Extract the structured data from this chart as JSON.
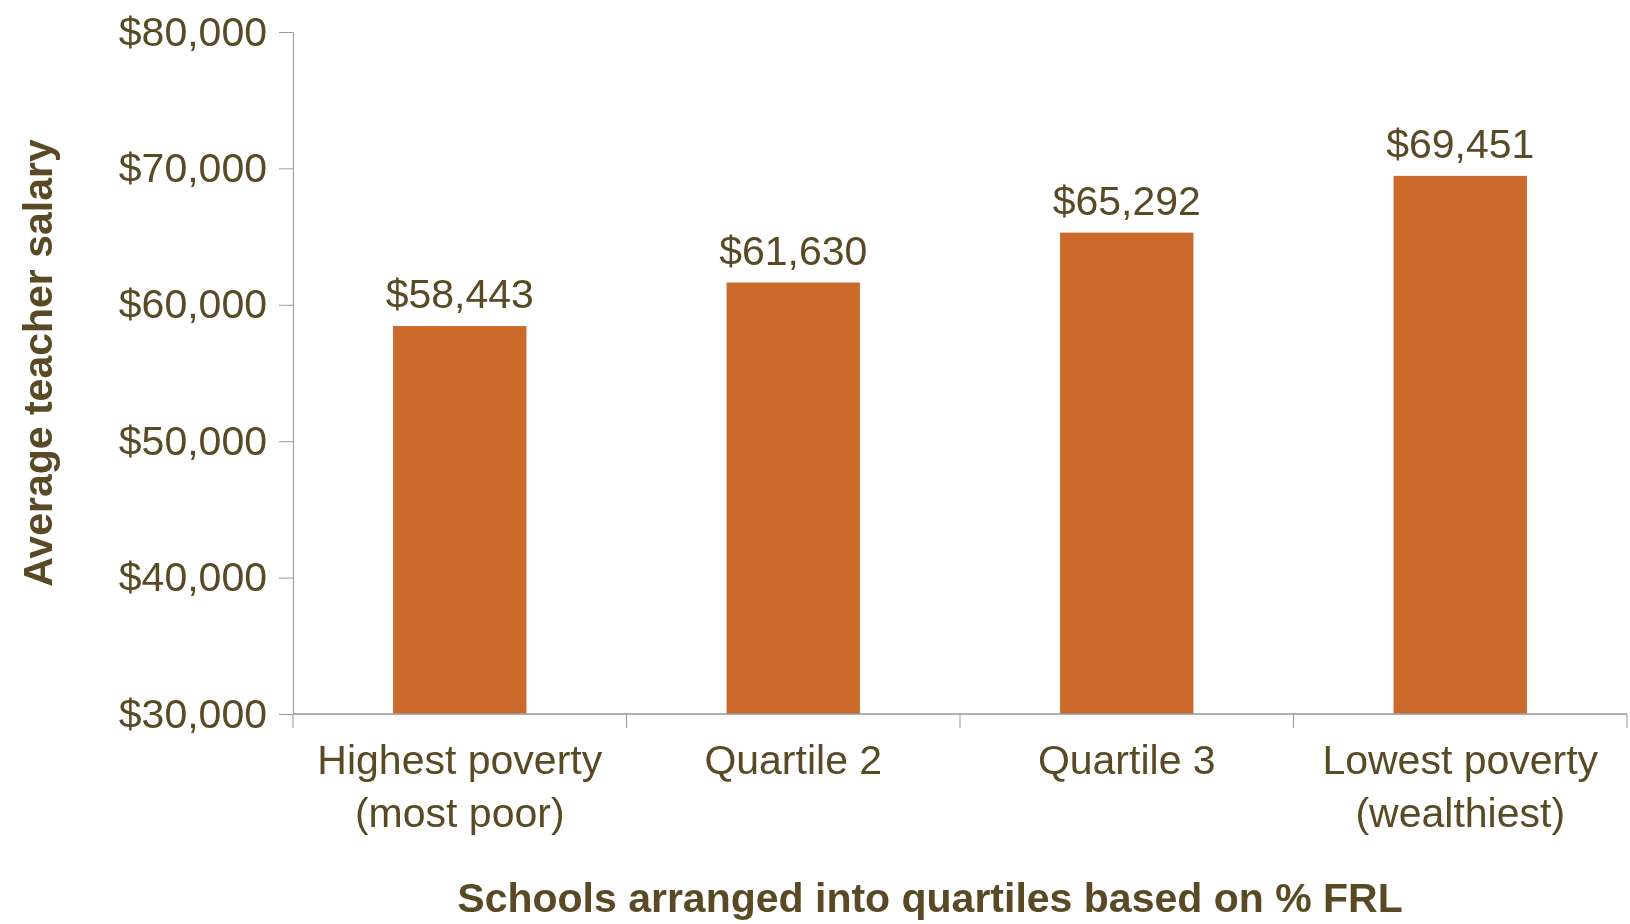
{
  "chart_data": {
    "type": "bar",
    "xlabel": "Schools arranged into quartiles based on % FRL",
    "ylabel": "Average teacher salary",
    "categories": [
      "Highest poverty\n(most poor)",
      "Quartile 2",
      "Quartile 3",
      "Lowest poverty\n(wealthiest)"
    ],
    "values": [
      58443,
      61630,
      65292,
      69451
    ],
    "value_labels": [
      "$58,443",
      "$61,630",
      "$65,292",
      "$69,451"
    ],
    "color": "#cc6a2b",
    "ylim": [
      30000,
      80000
    ],
    "yticks": [
      {
        "value": 30000,
        "label": "$30,000"
      },
      {
        "value": 40000,
        "label": "$40,000"
      },
      {
        "value": 50000,
        "label": "$50,000"
      },
      {
        "value": 60000,
        "label": "$60,000"
      },
      {
        "value": 70000,
        "label": "$70,000"
      },
      {
        "value": 80000,
        "label": "$80,000"
      }
    ],
    "grid": false
  }
}
